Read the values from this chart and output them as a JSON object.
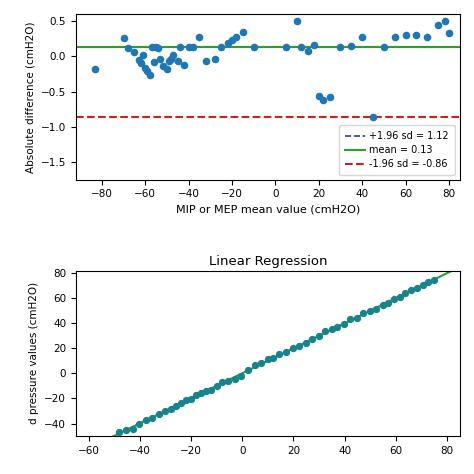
{
  "title2": "Linear Regression",
  "xlabel1": "MIP or MEP mean value (cmH2O)",
  "ylabel1": "Absolute difference (cmH2O)",
  "ylabel2": "d pressure values (cmH2O)",
  "mean": 0.13,
  "upper_sd": 1.12,
  "lower_sd": -0.86,
  "xlim1": [
    -92,
    85
  ],
  "ylim1": [
    -1.75,
    0.6
  ],
  "xlim2": [
    -65,
    85
  ],
  "ylim2": [
    -50,
    82
  ],
  "scatter1_x": [
    -83,
    -70,
    -68,
    -65,
    -63,
    -62,
    -61,
    -60,
    -59,
    -58,
    -57,
    -56,
    -55,
    -54,
    -53,
    -52,
    -50,
    -49,
    -48,
    -47,
    -45,
    -44,
    -42,
    -40,
    -38,
    -35,
    -32,
    -28,
    -25,
    -22,
    -20,
    -18,
    -15,
    -10,
    5,
    10,
    12,
    15,
    18,
    20,
    22,
    25,
    30,
    35,
    40,
    45,
    50,
    55,
    60,
    65,
    70,
    75,
    78,
    80
  ],
  "scatter1_y": [
    -0.18,
    0.26,
    0.12,
    0.06,
    -0.05,
    -0.1,
    0.02,
    -0.16,
    -0.2,
    -0.26,
    0.14,
    -0.08,
    0.13,
    0.12,
    -0.03,
    -0.14,
    -0.18,
    -0.06,
    -0.04,
    0.02,
    -0.06,
    0.13,
    -0.12,
    0.13,
    0.13,
    0.27,
    -0.06,
    -0.03,
    0.13,
    0.19,
    0.24,
    0.27,
    0.35,
    0.13,
    0.13,
    0.5,
    0.13,
    0.08,
    0.16,
    -0.56,
    -0.62,
    -0.58,
    0.13,
    0.15,
    0.27,
    -0.86,
    0.13,
    0.27,
    0.3,
    0.3,
    0.27,
    0.45,
    0.5,
    0.33
  ],
  "scatter1_color": "#1f77b4",
  "line_mean_color": "#2ca02c",
  "line_upper_color": "#3333cc",
  "line_lower_color": "#cc2222",
  "scatter2_color": "#17838c",
  "regression_color": "#2ca02c",
  "legend_labels": [
    "+1.96 sd = 1.12",
    "mean = 0.13",
    "-1.96 sd = -0.86"
  ],
  "legend_colors": [
    "#3333cc",
    "#2ca02c",
    "#cc2222"
  ],
  "legend_linestyles": [
    "--",
    "-",
    "--"
  ]
}
